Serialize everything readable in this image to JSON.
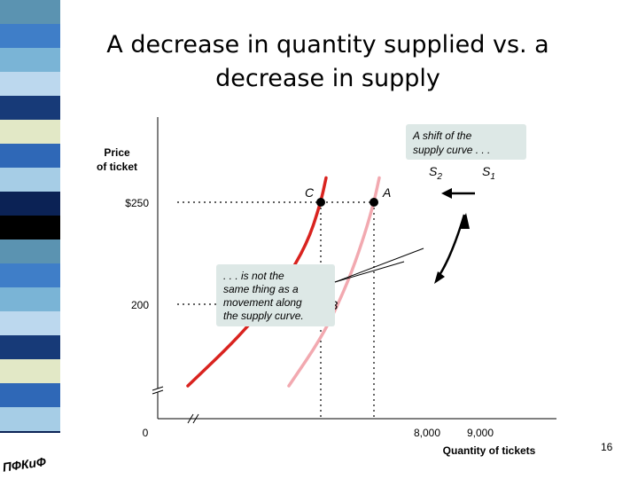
{
  "slide": {
    "title_line1": "A decrease in quantity supplied vs. a",
    "title_line2": "decrease in supply",
    "page_number": "16",
    "logo_text": "ПФКиФ"
  },
  "colors": {
    "s1_curve": "#f2a9b0",
    "s2_curve": "#d9231f",
    "callout_bg": "#dde8e6",
    "strip": [
      "#5b93b1",
      "#a6cde6",
      "#173a78",
      "#3f7ec8",
      "#0b2255",
      "#e2e8c6",
      "#7ab4d6",
      "#000000",
      "#2f68b7",
      "#bcd8ee"
    ]
  },
  "chart_data": {
    "type": "line",
    "xlabel": "Quantity of tickets",
    "ylabel_line1": "Price",
    "ylabel_line2": "of ticket",
    "x_ticks": [
      "0",
      "8,000",
      "9,000"
    ],
    "y_ticks": [
      "$250",
      "200"
    ],
    "series": [
      {
        "name": "S1",
        "label_main": "S",
        "label_sub": "1",
        "points": [
          [
            7400,
            160
          ],
          [
            8050,
            185
          ],
          [
            8500,
            210
          ],
          [
            8800,
            232
          ],
          [
            9000,
            250
          ],
          [
            9100,
            262
          ]
        ]
      },
      {
        "name": "S2",
        "label_main": "S",
        "label_sub": "2",
        "points": [
          [
            5500,
            160
          ],
          [
            6500,
            185
          ],
          [
            7300,
            210
          ],
          [
            7750,
            230
          ],
          [
            8000,
            250
          ],
          [
            8100,
            262
          ]
        ]
      }
    ],
    "points": [
      {
        "label": "A",
        "x": 9000,
        "y": 250
      },
      {
        "label": "C",
        "x": 8000,
        "y": 250
      },
      {
        "label": "B",
        "x": 8000,
        "y": 200
      }
    ],
    "annotations": {
      "callout_top": [
        "A shift of the",
        "supply curve . . ."
      ],
      "callout_mid": [
        ". . . is not the",
        "same thing as a",
        "movement along",
        "the supply curve."
      ]
    }
  }
}
